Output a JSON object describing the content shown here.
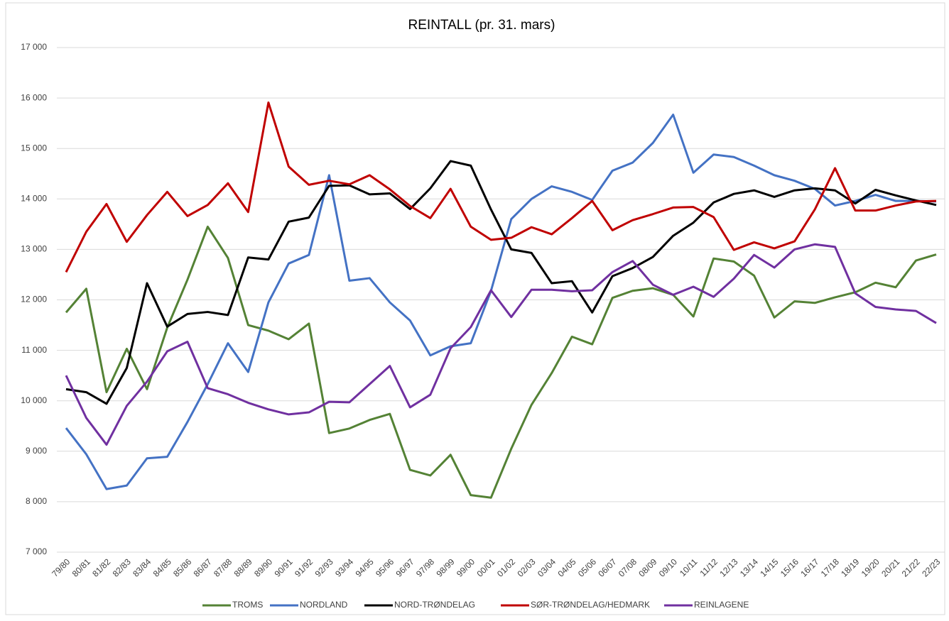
{
  "chart_data": {
    "type": "line",
    "title": "REINTALL (pr. 31. mars)",
    "categories": [
      "79/80",
      "80/81",
      "81/82",
      "82/83",
      "83/84",
      "84/85",
      "85/86",
      "86/87",
      "87/88",
      "88/89",
      "89/90",
      "90/91",
      "91/92",
      "92/93",
      "93/94",
      "94/95",
      "95/96",
      "96/97",
      "97/98",
      "98/99",
      "99/00",
      "00/01",
      "01/02",
      "02/03",
      "03/04",
      "04/05",
      "05/06",
      "06/07",
      "07/08",
      "08/09",
      "09/10",
      "10/11",
      "11/12",
      "12/13",
      "13/14",
      "14/15",
      "15/16",
      "16/17",
      "17/18",
      "18/19",
      "19/20",
      "20/21",
      "21/22",
      "22/23"
    ],
    "series": [
      {
        "name": "TROMS",
        "color": "#548235",
        "values": [
          11750,
          12220,
          10170,
          11030,
          10230,
          11450,
          12400,
          13450,
          12830,
          11500,
          11390,
          11220,
          11530,
          9360,
          9450,
          9620,
          9740,
          8630,
          8520,
          8930,
          8130,
          8080,
          9050,
          9920,
          10550,
          11270,
          11120,
          12040,
          12180,
          12230,
          12100,
          11670,
          12820,
          12760,
          12480,
          11650,
          11970,
          11940,
          12050,
          12150,
          12340,
          12250,
          12780,
          12900
        ]
      },
      {
        "name": "NORDLAND",
        "color": "#4472c4",
        "values": [
          9460,
          8940,
          8250,
          8320,
          8860,
          8890,
          9580,
          10330,
          11140,
          10570,
          11950,
          12720,
          12890,
          14470,
          12380,
          12430,
          11950,
          11590,
          10900,
          11080,
          11140,
          12180,
          13600,
          14000,
          14250,
          14140,
          13980,
          14560,
          14720,
          15110,
          15670,
          14520,
          14880,
          14830,
          14660,
          14470,
          14360,
          14200,
          13870,
          13960,
          14080,
          13960,
          13960,
          13950
        ]
      },
      {
        "name": "NORD-TRØNDELAG",
        "color": "#000000",
        "values": [
          10230,
          10170,
          9940,
          10650,
          12330,
          11470,
          11720,
          11760,
          11700,
          12840,
          12800,
          13550,
          13630,
          14260,
          14270,
          14090,
          14110,
          13800,
          14210,
          14750,
          14660,
          13790,
          13000,
          12930,
          12330,
          12370,
          11750,
          12470,
          12630,
          12850,
          13270,
          13530,
          13930,
          14100,
          14170,
          14040,
          14170,
          14210,
          14170,
          13910,
          14180,
          14070,
          13970,
          13880
        ]
      },
      {
        "name": "SØR-TRØNDELAG/HEDMARK",
        "color": "#c00000",
        "values": [
          12550,
          13350,
          13900,
          13150,
          13680,
          14140,
          13660,
          13880,
          14310,
          13740,
          15910,
          14640,
          14280,
          14360,
          14290,
          14470,
          14190,
          13860,
          13620,
          14200,
          13450,
          13190,
          13230,
          13440,
          13300,
          13620,
          13960,
          13380,
          13580,
          13700,
          13830,
          13840,
          13640,
          12990,
          13140,
          13020,
          13160,
          13790,
          14610,
          13770,
          13770,
          13870,
          13950,
          13960
        ]
      },
      {
        "name": "REINLAGENE",
        "color": "#7030a0",
        "values": [
          10500,
          9660,
          9130,
          9900,
          10380,
          10980,
          11170,
          10250,
          10130,
          9960,
          9830,
          9730,
          9770,
          9980,
          9970,
          10330,
          10690,
          9870,
          10120,
          11040,
          11460,
          12190,
          11660,
          12200,
          12200,
          12170,
          12190,
          12550,
          12770,
          12300,
          12100,
          12260,
          12060,
          12420,
          12890,
          12640,
          13000,
          13100,
          13050,
          12130,
          11860,
          11810,
          11780,
          11540
        ]
      }
    ],
    "ylim": [
      7000,
      17000
    ],
    "yticks": [
      {
        "value": 7000,
        "label": "7 000"
      },
      {
        "value": 8000,
        "label": "8 000"
      },
      {
        "value": 9000,
        "label": "9 000"
      },
      {
        "value": 10000,
        "label": "10 000"
      },
      {
        "value": 11000,
        "label": "11 000"
      },
      {
        "value": 12000,
        "label": "12 000"
      },
      {
        "value": 13000,
        "label": "13 000"
      },
      {
        "value": 14000,
        "label": "14 000"
      },
      {
        "value": 15000,
        "label": "15 000"
      },
      {
        "value": 16000,
        "label": "16 000"
      },
      {
        "value": 17000,
        "label": "17 000"
      }
    ],
    "grid": true,
    "legend": "bottom"
  }
}
